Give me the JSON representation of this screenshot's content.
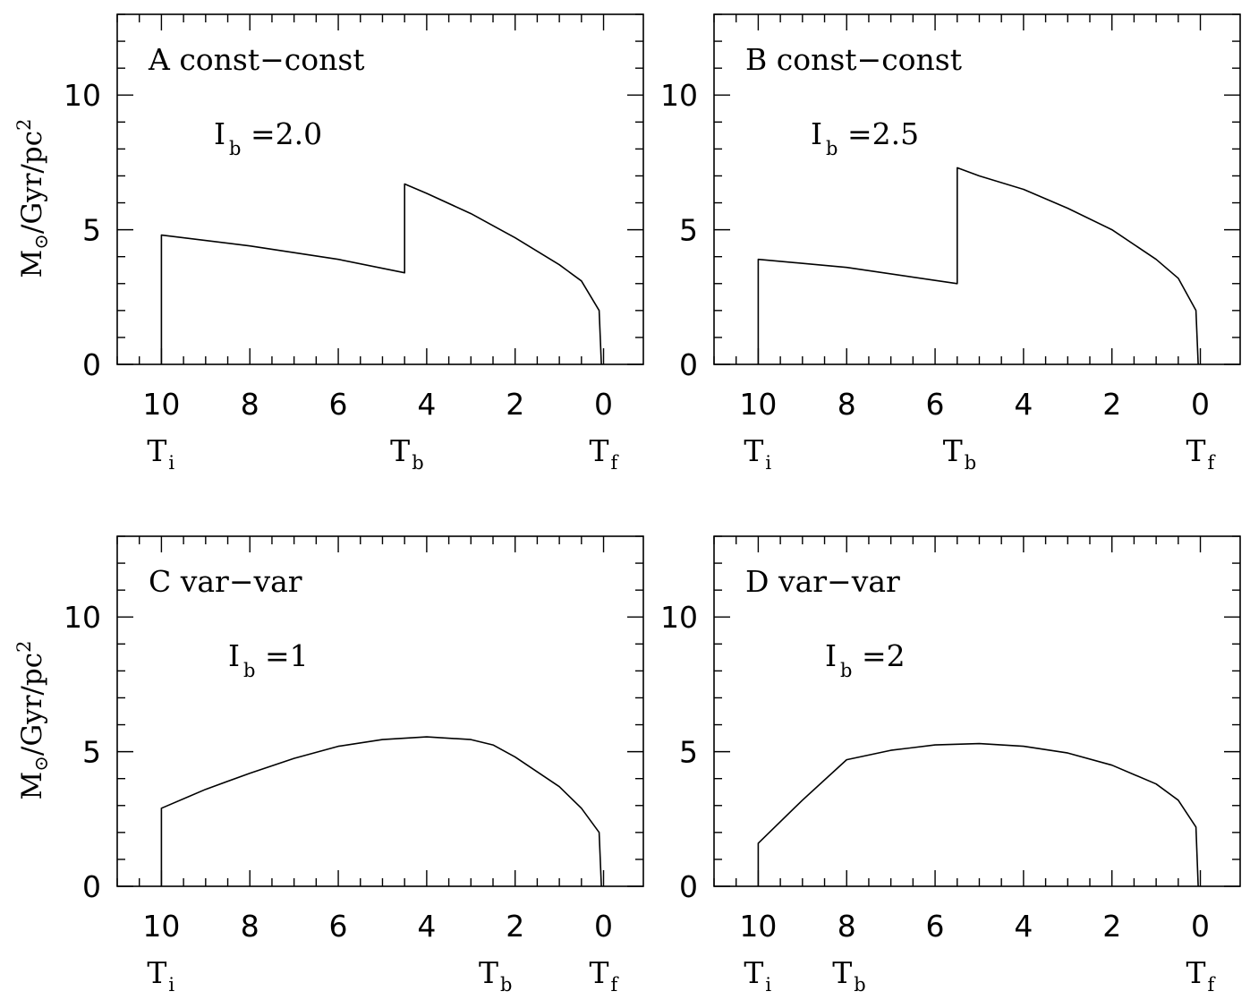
{
  "chart_data": [
    {
      "type": "line",
      "panel": "A",
      "title": "A const−const",
      "param_label": "I",
      "param_sub": "b",
      "param_value": " =2.0",
      "ylabel": {
        "main": "M",
        "sun": "⊙",
        "rest": "/Gyr/pc",
        "sup": "2"
      },
      "xlim": [
        11.0,
        -0.9
      ],
      "ylim": [
        0,
        13
      ],
      "x_ticks": [
        "10",
        "8",
        "6",
        "4",
        "2",
        "0"
      ],
      "y_ticks": [
        "0",
        "5",
        "10"
      ],
      "markers": [
        {
          "main": "T",
          "sub": "i",
          "x": 10
        },
        {
          "main": "T",
          "sub": "b",
          "x": 4.5
        },
        {
          "main": "T",
          "sub": "f",
          "x": 0
        }
      ],
      "series": [
        {
          "x": [
            10,
            10,
            8,
            6,
            4.5,
            4.5,
            4,
            3,
            2,
            1,
            0.5,
            0.1,
            0.1,
            0.05
          ],
          "y": [
            0,
            4.8,
            4.4,
            3.9,
            3.4,
            6.7,
            6.35,
            5.6,
            4.7,
            3.7,
            3.1,
            2.0,
            2.0,
            0
          ]
        }
      ]
    },
    {
      "type": "line",
      "panel": "B",
      "title": "B const−const",
      "param_label": "I",
      "param_sub": "b",
      "param_value": " =2.5",
      "ylabel": {
        "main": "",
        "sun": "",
        "rest": "",
        "sup": ""
      },
      "xlim": [
        11.0,
        -0.9
      ],
      "ylim": [
        0,
        13
      ],
      "x_ticks": [
        "10",
        "8",
        "6",
        "4",
        "2",
        "0"
      ],
      "y_ticks": [
        "0",
        "5",
        "10"
      ],
      "markers": [
        {
          "main": "T",
          "sub": "i",
          "x": 10
        },
        {
          "main": "T",
          "sub": "b",
          "x": 5.5
        },
        {
          "main": "T",
          "sub": "f",
          "x": 0
        }
      ],
      "series": [
        {
          "x": [
            10,
            10,
            8,
            5.5,
            5.5,
            5,
            4,
            3,
            2,
            1,
            0.5,
            0.1,
            0.1,
            0.05
          ],
          "y": [
            0,
            3.9,
            3.6,
            3.0,
            7.3,
            7.0,
            6.5,
            5.8,
            5.0,
            3.9,
            3.2,
            2.0,
            2.0,
            0
          ]
        }
      ]
    },
    {
      "type": "line",
      "panel": "C",
      "title": "C var−var",
      "param_label": "I",
      "param_sub": "b",
      "param_value": " =1",
      "ylabel": {
        "main": "M",
        "sun": "⊙",
        "rest": "/Gyr/pc",
        "sup": "2"
      },
      "xlim": [
        11.0,
        -0.9
      ],
      "ylim": [
        0,
        13
      ],
      "x_ticks": [
        "10",
        "8",
        "6",
        "4",
        "2",
        "0"
      ],
      "y_ticks": [
        "0",
        "5",
        "10"
      ],
      "markers": [
        {
          "main": "T",
          "sub": "i",
          "x": 10
        },
        {
          "main": "T",
          "sub": "b",
          "x": 2.5
        },
        {
          "main": "T",
          "sub": "f",
          "x": 0
        }
      ],
      "series": [
        {
          "x": [
            10,
            10,
            9,
            8,
            7,
            6,
            5,
            4,
            3,
            2.5,
            2,
            1,
            0.5,
            0.1,
            0.1,
            0.05
          ],
          "y": [
            0,
            2.9,
            3.6,
            4.2,
            4.75,
            5.2,
            5.45,
            5.55,
            5.45,
            5.25,
            4.8,
            3.7,
            2.9,
            2.0,
            2.0,
            0
          ]
        }
      ]
    },
    {
      "type": "line",
      "panel": "D",
      "title": "D var−var",
      "param_label": "I",
      "param_sub": "b",
      "param_value": " =2",
      "ylabel": {
        "main": "",
        "sun": "",
        "rest": "",
        "sup": ""
      },
      "xlim": [
        11.0,
        -0.9
      ],
      "ylim": [
        0,
        13
      ],
      "x_ticks": [
        "10",
        "8",
        "6",
        "4",
        "2",
        "0"
      ],
      "y_ticks": [
        "0",
        "5",
        "10"
      ],
      "markers": [
        {
          "main": "T",
          "sub": "i",
          "x": 10
        },
        {
          "main": "T",
          "sub": "b",
          "x": 8
        },
        {
          "main": "T",
          "sub": "f",
          "x": 0
        }
      ],
      "series": [
        {
          "x": [
            10,
            10,
            9,
            8,
            7,
            6,
            5,
            4,
            3,
            2,
            1,
            0.5,
            0.1,
            0.1,
            0.05
          ],
          "y": [
            0,
            1.6,
            3.2,
            4.7,
            5.05,
            5.25,
            5.3,
            5.2,
            4.95,
            4.5,
            3.8,
            3.2,
            2.2,
            2.2,
            0
          ]
        }
      ]
    }
  ]
}
